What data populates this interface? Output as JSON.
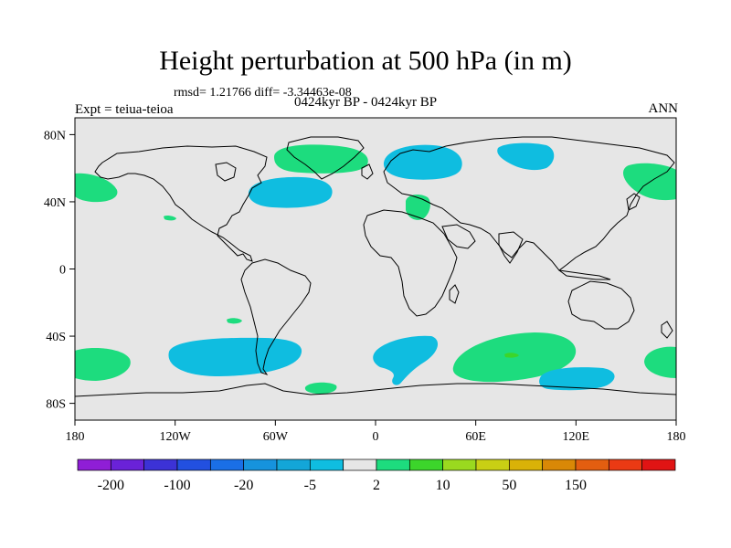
{
  "title": "Height perturbation at 500 hPa (in m)",
  "subtitle": {
    "rmsd_line": "rmsd= 1.21766 diff= -3.34463e-08",
    "periods": "0424kyr BP - 0424kyr BP",
    "experiment": "Expt = teiua-teioa",
    "season": "ANN"
  },
  "axes": {
    "lat_labels": [
      "80N",
      "40N",
      "0",
      "40S",
      "80S"
    ],
    "lon_labels": [
      "180",
      "120W",
      "60W",
      "0",
      "60E",
      "120E",
      "180"
    ]
  },
  "colorbar": {
    "colors": [
      "#8f1ed6",
      "#6a22d8",
      "#3c32d6",
      "#2250e0",
      "#1a6fe6",
      "#1693dd",
      "#13a6d8",
      "#0fbde0",
      "#e6e6e6",
      "#1ddc7e",
      "#3cd52b",
      "#9ad91f",
      "#c9cf14",
      "#d9b208",
      "#d98806",
      "#e35e10",
      "#ea3a14",
      "#e01414"
    ],
    "labels": [
      "-200",
      "-100",
      "-20",
      "-5",
      "2",
      "10",
      "50",
      "150"
    ]
  },
  "colors": {
    "land_bg": "#e6e6e6",
    "positive": "#1ddc7e",
    "negative": "#0fbde0",
    "coast": "#000000"
  },
  "chart_data": {
    "type": "contour-map",
    "variable": "500 hPa height perturbation",
    "units": "m",
    "lat_range": [
      -90,
      90
    ],
    "lon_range": [
      -180,
      180
    ],
    "levels": [
      -200,
      -100,
      -20,
      -5,
      2,
      10,
      50,
      150
    ],
    "anomaly_regions": [
      {
        "sign": "positive",
        "label": "greenland",
        "lon": [
          -70,
          -10
        ],
        "lat": [
          64,
          84
        ]
      },
      {
        "sign": "positive",
        "label": "n-pacific-west",
        "lon": [
          -180,
          -152
        ],
        "lat": [
          40,
          55
        ]
      },
      {
        "sign": "positive",
        "label": "n-pacific-east",
        "lon": [
          150,
          180
        ],
        "lat": [
          40,
          60
        ]
      },
      {
        "sign": "positive",
        "label": "mediterranean",
        "lon": [
          8,
          28
        ],
        "lat": [
          30,
          46
        ]
      },
      {
        "sign": "positive",
        "label": "small-nw-atlantic",
        "lon": [
          -128,
          -122
        ],
        "lat": [
          35,
          37
        ]
      },
      {
        "sign": "positive",
        "label": "s-pacific-west",
        "lon": [
          -180,
          -146
        ],
        "lat": [
          -58,
          -43
        ]
      },
      {
        "sign": "positive",
        "label": "s-indian",
        "lon": [
          48,
          118
        ],
        "lat": [
          -66,
          -44
        ]
      },
      {
        "sign": "positive",
        "label": "s-pacific-east",
        "lon": [
          154,
          180
        ],
        "lat": [
          -60,
          -43
        ]
      },
      {
        "sign": "positive",
        "label": "antarctic-coast",
        "lon": [
          -40,
          -25
        ],
        "lat": [
          -80,
          -74
        ]
      },
      {
        "sign": "positive",
        "label": "small-s-atlantic",
        "lon": [
          -85,
          -75
        ],
        "lat": [
          -30,
          -27
        ]
      },
      {
        "sign": "negative",
        "label": "n-atlantic",
        "lon": [
          -75,
          -35
        ],
        "lat": [
          32,
          50
        ]
      },
      {
        "sign": "negative",
        "label": "scandinavia",
        "lon": [
          5,
          50
        ],
        "lat": [
          50,
          78
        ]
      },
      {
        "sign": "negative",
        "label": "siberia",
        "lon": [
          65,
          90
        ],
        "lat": [
          62,
          82
        ]
      },
      {
        "sign": "negative",
        "label": "s-pacific-central",
        "lon": [
          -120,
          -60
        ],
        "lat": [
          -66,
          -44
        ]
      },
      {
        "sign": "negative",
        "label": "s-atlantic",
        "lon": [
          0,
          40
        ],
        "lat": [
          -72,
          -42
        ]
      },
      {
        "sign": "negative",
        "label": "antarctic-pacific",
        "lon": [
          100,
          148
        ],
        "lat": [
          -76,
          -65
        ]
      }
    ]
  }
}
